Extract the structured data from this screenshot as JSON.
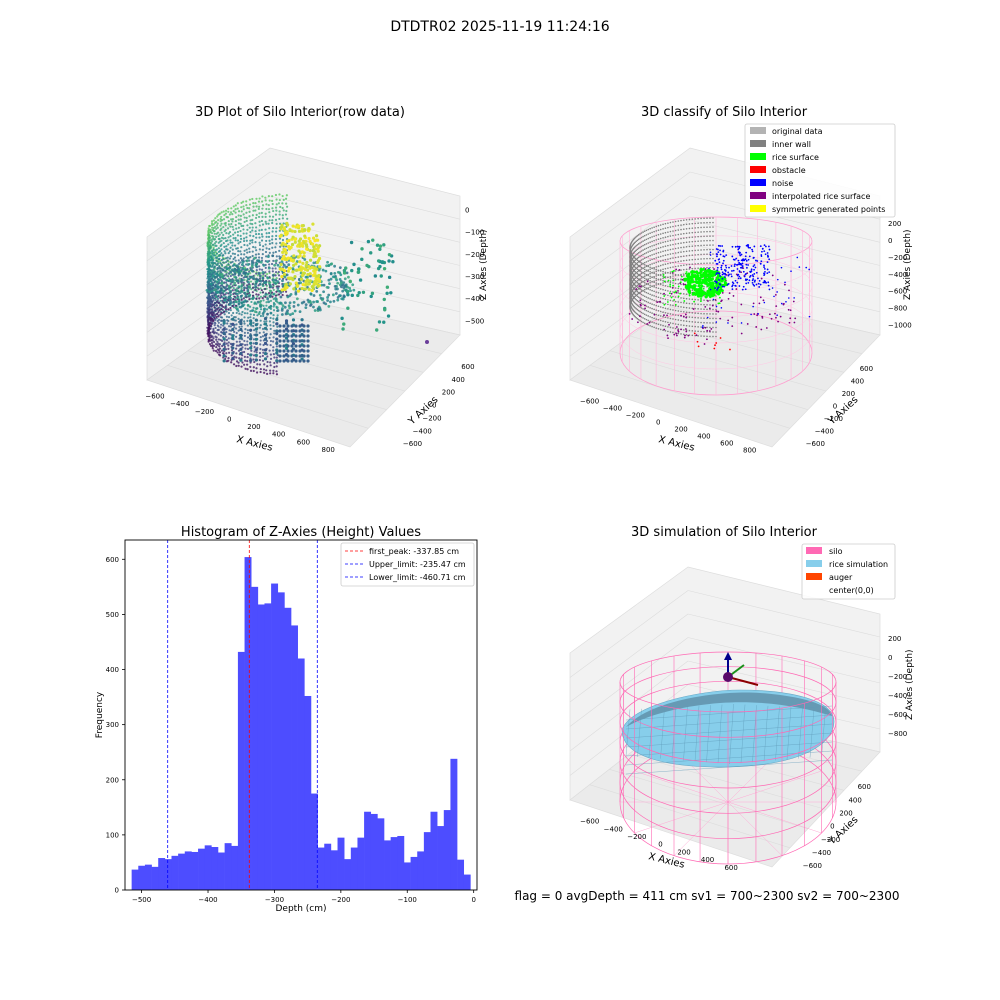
{
  "figure": {
    "suptitle": "DTDTR02 2025-11-19 11:24:16",
    "status_line": "flag = 0     avgDepth = 411 cm  sv1 = 700~2300  sv2 = 700~2300"
  },
  "chart_data": [
    {
      "type": "scatter",
      "projection": "3d",
      "title": "3D Plot of Silo Interior(row data)",
      "xlabel": "X Axies",
      "ylabel": "Y Axies",
      "zlabel": "Z Axies (Depth)",
      "xticks": [
        "−600",
        "−400",
        "−200",
        "0",
        "200",
        "400",
        "600",
        "800"
      ],
      "yticks": [
        "−600",
        "−400",
        "−200",
        "0",
        "200",
        "400",
        "600"
      ],
      "zticks": [
        "0",
        "−100",
        "−200",
        "−300",
        "−400",
        "−500"
      ],
      "xlim": [
        -600,
        800
      ],
      "ylim": [
        -600,
        600
      ],
      "zlim": [
        -560,
        0
      ],
      "colormap": "viridis",
      "grid": true
    },
    {
      "type": "scatter",
      "projection": "3d",
      "title": "3D classify of Silo Interior",
      "xlabel": "X Axies",
      "ylabel": "Y Axies",
      "zlabel": "Z Axies (Depth)",
      "xticks": [
        "−600",
        "−400",
        "−200",
        "0",
        "200",
        "400",
        "600",
        "800"
      ],
      "yticks": [
        "−600",
        "−400",
        "−200",
        "0",
        "200",
        "400",
        "600"
      ],
      "zticks": [
        "200",
        "0",
        "−200",
        "−400",
        "−600",
        "−800",
        "−1000"
      ],
      "xlim": [
        -600,
        800
      ],
      "ylim": [
        -600,
        600
      ],
      "zlim": [
        -1000,
        200
      ],
      "legend_position": "top-right",
      "legend": [
        {
          "label": "original data",
          "color": "#b3b3b3"
        },
        {
          "label": "inner wall",
          "color": "#808080"
        },
        {
          "label": "rice surface",
          "color": "#00ff00"
        },
        {
          "label": "obstacle",
          "color": "#ff0000"
        },
        {
          "label": "noise",
          "color": "#0000ff"
        },
        {
          "label": "interpolated rice surface",
          "color": "#800080"
        },
        {
          "label": "symmetric generated points",
          "color": "#ffff00"
        }
      ],
      "grid": true
    },
    {
      "type": "bar",
      "title": "Histogram of Z-Axies (Height) Values",
      "xlabel": "Depth (cm)",
      "ylabel": "Frequency",
      "xlim": [
        -525,
        5
      ],
      "ylim": [
        0,
        635
      ],
      "xticks": [
        -500,
        -400,
        -300,
        -200,
        -100,
        0
      ],
      "yticks": [
        0,
        100,
        200,
        300,
        400,
        500,
        600
      ],
      "bar_color": "#4d4dff",
      "bin_start": -515,
      "bin_width": 10,
      "values": [
        37,
        44,
        46,
        42,
        58,
        56,
        62,
        66,
        70,
        69,
        75,
        81,
        78,
        68,
        85,
        80,
        432,
        604,
        550,
        518,
        520,
        556,
        540,
        512,
        480,
        420,
        352,
        175,
        77,
        84,
        72,
        95,
        56,
        77,
        95,
        142,
        138,
        130,
        90,
        96,
        98,
        50,
        60,
        70,
        105,
        142,
        116,
        145,
        238,
        55,
        28
      ],
      "vlines": [
        {
          "label": "first_peak: -337.85 cm",
          "x": -337.85,
          "color": "#ff0000"
        },
        {
          "label": "Upper_limit: -235.47 cm",
          "x": -235.47,
          "color": "#0000ff"
        },
        {
          "label": "Lower_limit: -460.71 cm",
          "x": -460.71,
          "color": "#0000ff"
        }
      ],
      "legend_position": "top-right"
    },
    {
      "type": "surface",
      "projection": "3d",
      "title": "3D simulation of Silo Interior",
      "xlabel": "X Axies",
      "ylabel": "Y Axies",
      "zlabel": "Z Axies (Depth)",
      "xticks": [
        "−600",
        "−400",
        "−200",
        "0",
        "200",
        "400",
        "600"
      ],
      "yticks": [
        "−600",
        "−400",
        "−200",
        "0",
        "200",
        "400",
        "600"
      ],
      "zticks": [
        "200",
        "0",
        "−200",
        "−400",
        "−600",
        "−800"
      ],
      "xlim": [
        -600,
        600
      ],
      "ylim": [
        -600,
        600
      ],
      "zlim": [
        -900,
        300
      ],
      "legend_position": "top-right",
      "legend": [
        {
          "label": "silo",
          "color": "#ff69b4"
        },
        {
          "label": "rice simulation",
          "color": "#87ceeb"
        },
        {
          "label": "auger",
          "color": "#ff4500"
        },
        {
          "label": "center(0,0)",
          "color": "none"
        }
      ],
      "grid": true
    }
  ]
}
